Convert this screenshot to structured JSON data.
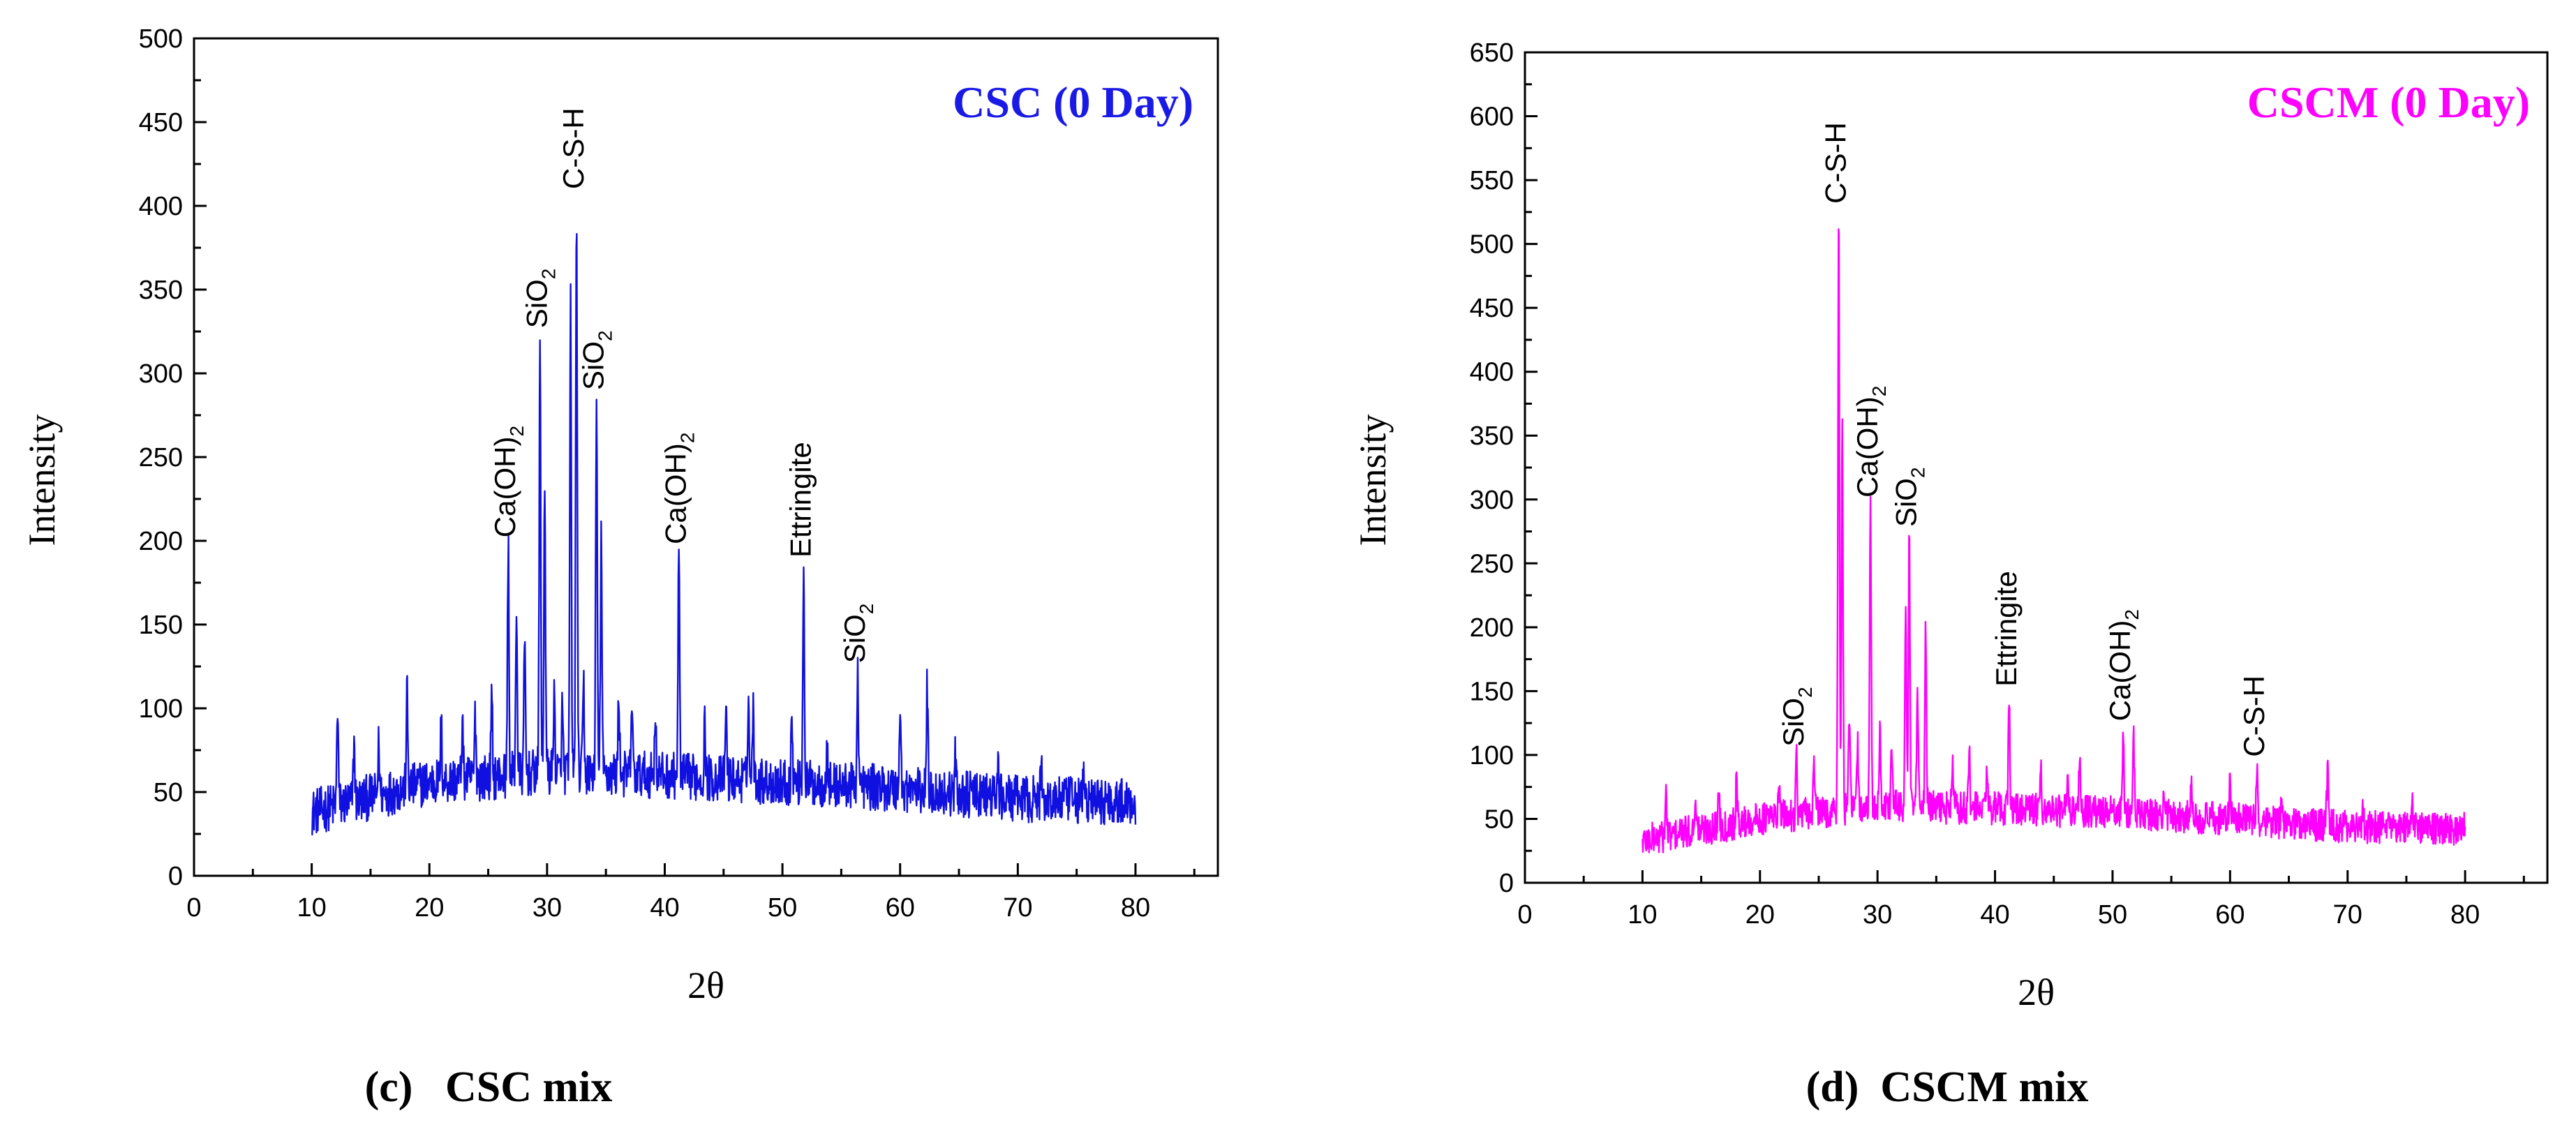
{
  "figure_captions": [
    "(c)   CSC mix",
    "(d)  CSCM mix"
  ],
  "chart_data": [
    {
      "type": "line",
      "title": "CSC (0 Day)",
      "caption": "(c)   CSC mix",
      "xlabel": "2θ",
      "ylabel": "Intensity",
      "xlim": [
        0,
        87
      ],
      "ylim": [
        0,
        500
      ],
      "xticks": [
        0,
        10,
        20,
        30,
        40,
        50,
        60,
        70,
        80
      ],
      "yticks": [
        0,
        50,
        100,
        150,
        200,
        250,
        300,
        350,
        400,
        450,
        500
      ],
      "color": "#1010e0",
      "title_color": "#1a1ae6",
      "baseline": [
        [
          10,
          38
        ],
        [
          20,
          56
        ],
        [
          30,
          62
        ],
        [
          40,
          60
        ],
        [
          50,
          56
        ],
        [
          60,
          52
        ],
        [
          70,
          46
        ],
        [
          80,
          44
        ]
      ],
      "noise_amplitude": 14,
      "peaks": [
        [
          12.2,
          102
        ],
        [
          13.6,
          80
        ],
        [
          15.7,
          78
        ],
        [
          18.1,
          110
        ],
        [
          21.0,
          90
        ],
        [
          22.8,
          92
        ],
        [
          23.9,
          96
        ],
        [
          25.3,
          105
        ],
        [
          26.7,
          197
        ],
        [
          27.4,
          162
        ],
        [
          28.1,
          140
        ],
        [
          29.4,
          322
        ],
        [
          29.8,
          240
        ],
        [
          30.6,
          110
        ],
        [
          31.3,
          100
        ],
        [
          32.0,
          340
        ],
        [
          32.5,
          405
        ],
        [
          33.1,
          115
        ],
        [
          34.2,
          285
        ],
        [
          34.6,
          205
        ],
        [
          36.1,
          110
        ],
        [
          37.2,
          105
        ],
        [
          39.2,
          100
        ],
        [
          41.2,
          193
        ],
        [
          43.4,
          90
        ],
        [
          45.2,
          102
        ],
        [
          47.1,
          108
        ],
        [
          47.5,
          100
        ],
        [
          50.8,
          95
        ],
        [
          51.8,
          185
        ],
        [
          53.8,
          70
        ],
        [
          56.4,
          122
        ],
        [
          60.0,
          102
        ],
        [
          62.3,
          113
        ],
        [
          64.7,
          70
        ],
        [
          68.3,
          66
        ],
        [
          72.0,
          65
        ],
        [
          75.6,
          60
        ]
      ],
      "annotations": [
        {
          "text": "Ca(OH)",
          "sub": "2",
          "x": 26.7,
          "y": 197
        },
        {
          "text": "SiO",
          "sub": "2",
          "x": 29.4,
          "y": 322
        },
        {
          "text": "C-S-H",
          "sub": "",
          "x": 32.5,
          "y": 405
        },
        {
          "text": "SiO",
          "sub": "2",
          "x": 34.2,
          "y": 285
        },
        {
          "text": "Ca(OH)",
          "sub": "2",
          "x": 41.2,
          "y": 193
        },
        {
          "text": "Ettringite",
          "sub": "",
          "x": 51.8,
          "y": 185
        },
        {
          "text": "SiO",
          "sub": "2",
          "x": 56.4,
          "y": 122
        }
      ]
    },
    {
      "type": "line",
      "title": "CSCM (0 Day)",
      "caption": "(d)  CSCM mix",
      "xlabel": "2θ",
      "ylabel": "Intensity",
      "xlim": [
        0,
        87
      ],
      "ylim": [
        0,
        650
      ],
      "xticks": [
        0,
        10,
        20,
        30,
        40,
        50,
        60,
        70,
        80
      ],
      "yticks": [
        0,
        50,
        100,
        150,
        200,
        250,
        300,
        350,
        400,
        450,
        500,
        550,
        600,
        650
      ],
      "color": "#ff00ff",
      "title_color": "#ff00ff",
      "baseline": [
        [
          10,
          33
        ],
        [
          20,
          50
        ],
        [
          25,
          55
        ],
        [
          30,
          60
        ],
        [
          40,
          58
        ],
        [
          50,
          55
        ],
        [
          60,
          50
        ],
        [
          70,
          44
        ],
        [
          80,
          42
        ]
      ],
      "noise_amplitude": 13,
      "peaks": [
        [
          12.0,
          70
        ],
        [
          14.5,
          72
        ],
        [
          16.5,
          75
        ],
        [
          18.0,
          78
        ],
        [
          21.6,
          80
        ],
        [
          23.1,
          100
        ],
        [
          24.6,
          98
        ],
        [
          26.7,
          525
        ],
        [
          27.0,
          365
        ],
        [
          27.6,
          135
        ],
        [
          28.3,
          110
        ],
        [
          29.4,
          295
        ],
        [
          30.2,
          120
        ],
        [
          31.2,
          110
        ],
        [
          32.4,
          222
        ],
        [
          32.7,
          272
        ],
        [
          33.4,
          150
        ],
        [
          34.1,
          205
        ],
        [
          36.4,
          95
        ],
        [
          37.8,
          102
        ],
        [
          39.3,
          92
        ],
        [
          41.2,
          147
        ],
        [
          43.9,
          88
        ],
        [
          46.2,
          92
        ],
        [
          47.2,
          105
        ],
        [
          50.9,
          120
        ],
        [
          51.8,
          110
        ],
        [
          54.4,
          72
        ],
        [
          56.7,
          75
        ],
        [
          60.0,
          78
        ],
        [
          62.3,
          92
        ],
        [
          64.4,
          72
        ],
        [
          68.3,
          94
        ],
        [
          71.3,
          62
        ],
        [
          75.5,
          58
        ]
      ],
      "annotations": [
        {
          "text": "SiO",
          "sub": "2",
          "x": 23.1,
          "y": 100
        },
        {
          "text": "C-S-H",
          "sub": "",
          "x": 26.7,
          "y": 525
        },
        {
          "text": "Ca(OH)",
          "sub": "2",
          "x": 29.4,
          "y": 295
        },
        {
          "text": "SiO",
          "sub": "2",
          "x": 32.7,
          "y": 272
        },
        {
          "text": "Ettringite",
          "sub": "",
          "x": 41.2,
          "y": 147
        },
        {
          "text": "Ca(OH)",
          "sub": "2",
          "x": 50.9,
          "y": 120
        },
        {
          "text": "C-S-H",
          "sub": "",
          "x": 62.3,
          "y": 92
        }
      ]
    }
  ]
}
